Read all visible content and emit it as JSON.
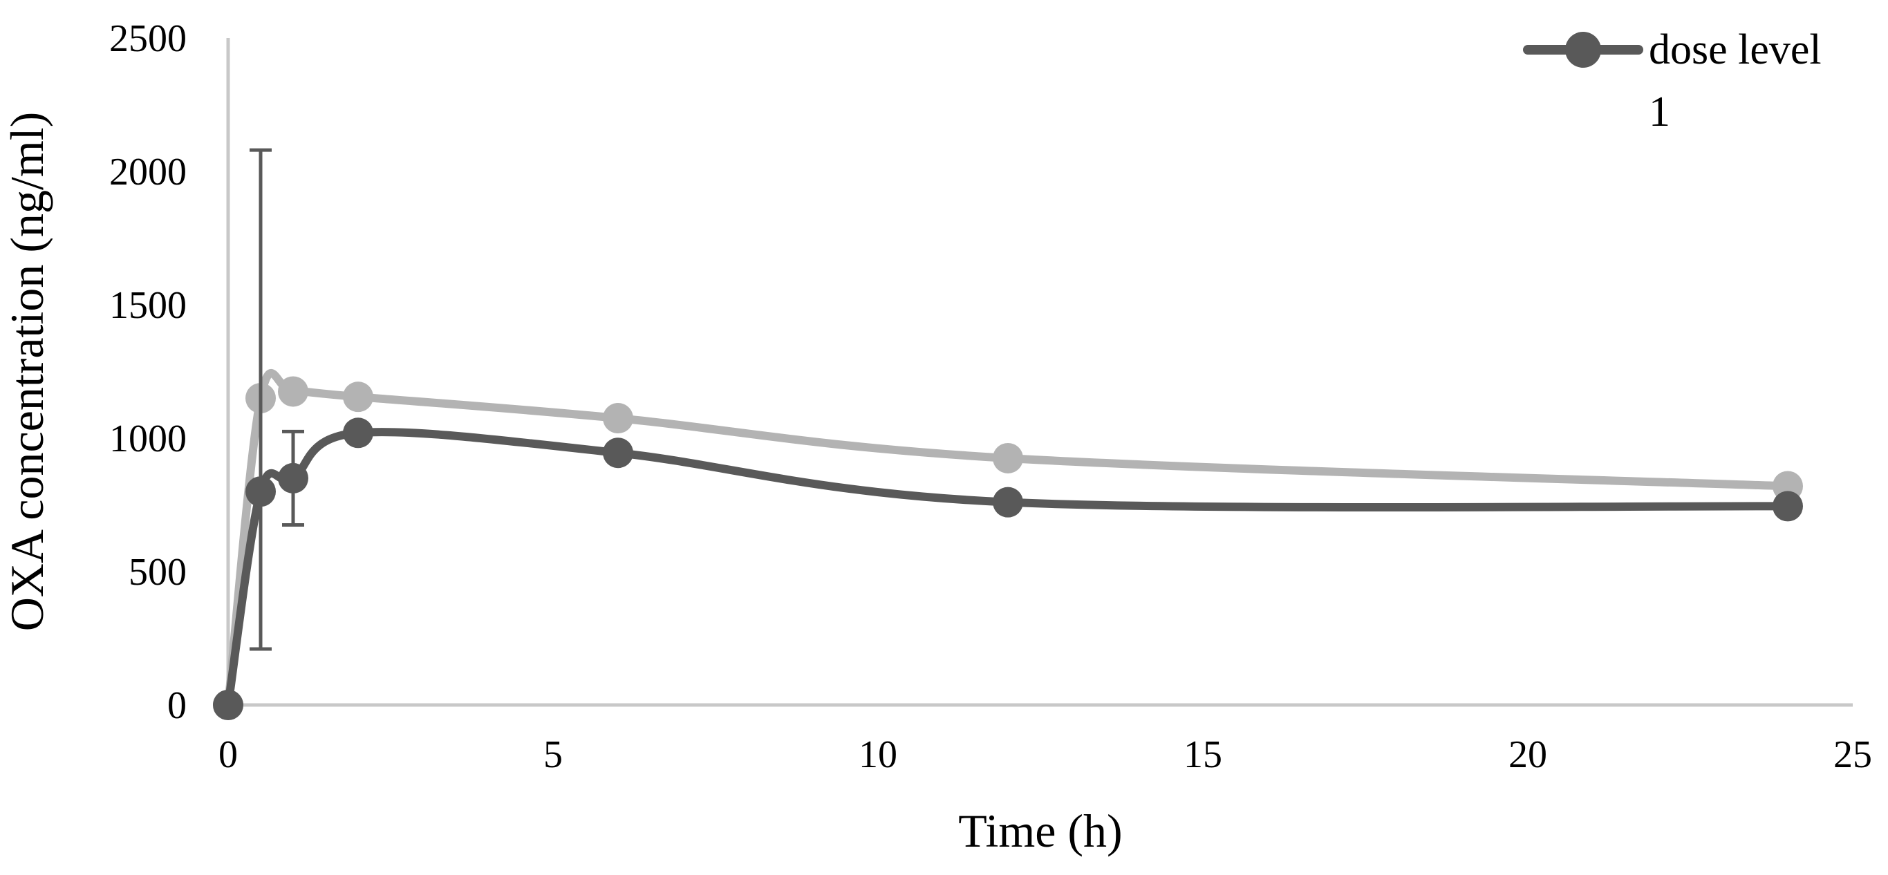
{
  "chart_data": {
    "type": "line",
    "title": "",
    "xlabel": "Time (h)",
    "ylabel": "OXA concentration (ng/ml)",
    "xlim": [
      0,
      25
    ],
    "ylim": [
      0,
      2500
    ],
    "xticks": [
      0,
      5,
      10,
      15,
      20,
      25
    ],
    "yticks": [
      0,
      500,
      1000,
      1500,
      2000,
      2500
    ],
    "grid": false,
    "smoothed": true,
    "legend": {
      "placement": "top-right",
      "entries": [
        "dose level 1"
      ]
    },
    "series": [
      {
        "name": "dose level 1",
        "color": "#595959",
        "points": [
          {
            "x": 0,
            "y": 0
          },
          {
            "x": 0.5,
            "y": 800,
            "err_low": 210,
            "err_high": 2080
          },
          {
            "x": 1,
            "y": 850,
            "err_low": 675,
            "err_high": 1025
          },
          {
            "x": 2,
            "y": 1020
          },
          {
            "x": 6,
            "y": 945
          },
          {
            "x": 12,
            "y": 760
          },
          {
            "x": 24,
            "y": 745
          }
        ]
      },
      {
        "color": "#b3b3b3",
        "points": [
          {
            "x": 0,
            "y": 0
          },
          {
            "x": 0.5,
            "y": 1150
          },
          {
            "x": 1,
            "y": 1175
          },
          {
            "x": 2,
            "y": 1155
          },
          {
            "x": 6,
            "y": 1075
          },
          {
            "x": 12,
            "y": 925
          },
          {
            "x": 24,
            "y": 820
          }
        ]
      }
    ]
  }
}
